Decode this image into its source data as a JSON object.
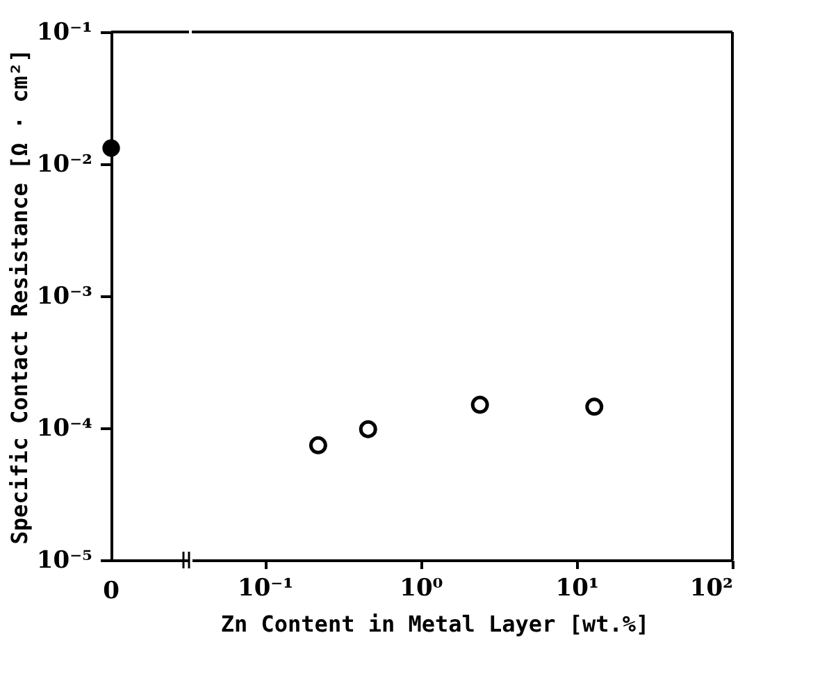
{
  "chart_data": [
    {
      "type": "scatter",
      "categories": [
        "0"
      ],
      "values": [
        0.0132
      ],
      "color": "#000000",
      "ylabel": "Specific Contact Resistance   [Ω · cm²]",
      "log": "y",
      "ylim": [
        1e-05,
        0.1
      ],
      "yticks": [
        {
          "value": 1e-05,
          "label": "10⁻⁵"
        },
        {
          "value": 0.0001,
          "label": "10⁻⁴"
        },
        {
          "value": 0.001,
          "label": "10⁻³"
        },
        {
          "value": 0.01,
          "label": "10⁻²"
        },
        {
          "value": 0.1,
          "label": "10⁻¹"
        }
      ],
      "marker": "circle",
      "grid": false,
      "legend": false
    },
    {
      "type": "scatter",
      "x": [
        0.22,
        0.46,
        2.4,
        13
      ],
      "values": [
        7.4e-05,
        9.8e-05,
        0.00015,
        0.000145
      ],
      "color": "#000000",
      "xlabel": "Zn Content in Metal Layer   [wt.%]",
      "log": "xy",
      "xlim": [
        0.034,
        100
      ],
      "xticks": [
        {
          "value": 0.1,
          "label": "10⁻¹"
        },
        {
          "value": 1,
          "label": "10⁰"
        },
        {
          "value": 10,
          "label": "10¹"
        },
        {
          "value": 100,
          "label": "10²"
        }
      ],
      "ylim": [
        1e-05,
        0.1
      ],
      "tick_labels": "x",
      "marker": "circle",
      "grid": false,
      "legend": false
    }
  ]
}
